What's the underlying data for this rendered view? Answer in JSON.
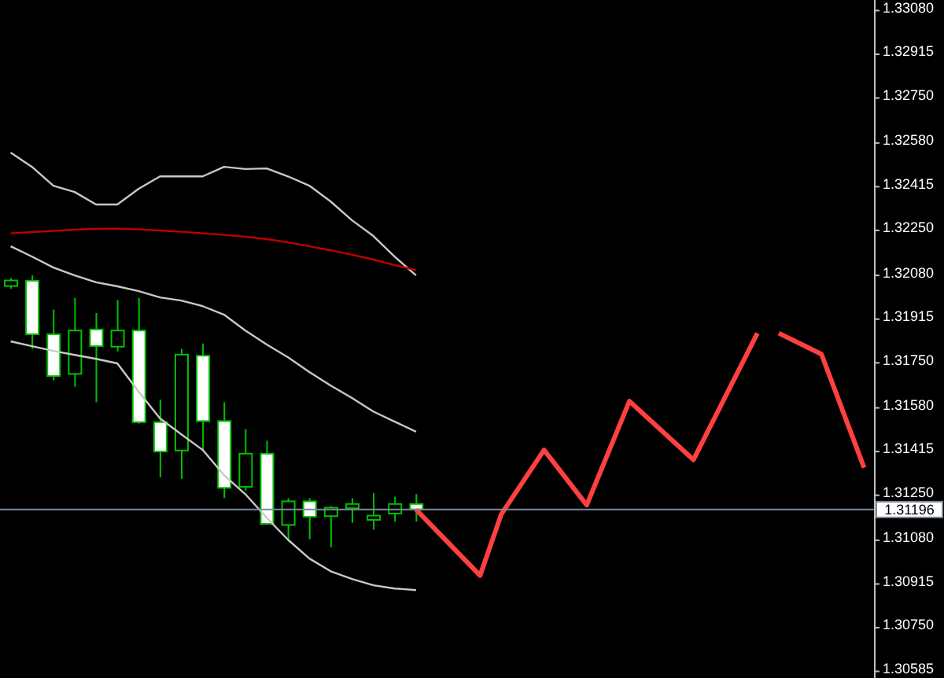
{
  "chart_data": {
    "type": "candlestick",
    "categories": [
      null,
      null,
      null,
      null,
      null,
      null,
      null,
      null,
      null,
      null,
      null,
      null,
      null,
      null,
      null,
      null,
      null,
      null,
      null,
      null,
      null,
      null,
      null,
      null,
      null,
      null,
      null,
      null,
      null,
      null,
      null,
      null,
      null,
      null,
      null,
      null,
      null,
      null,
      null,
      null,
      null
    ],
    "ohlc": [
      [
        1.3204,
        1.3207,
        1.3203,
        1.32061
      ],
      [
        1.3206,
        1.3208,
        1.31803,
        1.31858
      ],
      [
        1.31858,
        1.31951,
        1.31684,
        1.317
      ],
      [
        1.31708,
        1.31995,
        1.3166,
        1.31872
      ],
      [
        1.31876,
        1.31938,
        1.31601,
        1.31813
      ],
      [
        1.31811,
        1.31987,
        1.31793,
        1.31872
      ],
      [
        1.31872,
        1.31995,
        1.3152,
        1.31526
      ],
      [
        1.31526,
        1.31611,
        1.31318,
        1.31415
      ],
      [
        1.31419,
        1.31803,
        1.31312,
        1.31781
      ],
      [
        1.31777,
        1.31823,
        1.31417,
        1.3153
      ],
      [
        1.3153,
        1.31601,
        1.31239,
        1.31278
      ],
      [
        1.31282,
        1.315,
        1.31268,
        1.31407
      ],
      [
        1.31407,
        1.31456,
        1.31142,
        1.31142
      ],
      [
        1.31138,
        1.31239,
        1.31084,
        1.31227
      ],
      [
        1.31227,
        1.31239,
        1.31084,
        1.31169
      ],
      [
        1.31171,
        1.31209,
        1.31054,
        1.31203
      ],
      [
        1.31201,
        1.31239,
        1.31146,
        1.31217
      ],
      [
        1.31157,
        1.31258,
        1.3112,
        1.31173
      ],
      [
        1.31181,
        1.31245,
        1.3115,
        1.31217
      ],
      [
        1.31217,
        1.31254,
        1.3115,
        1.31196
      ],
      null,
      null,
      null,
      null,
      null,
      null,
      null,
      null,
      null,
      null,
      null,
      null,
      null,
      null,
      null,
      null,
      null,
      null,
      null,
      null,
      null
    ],
    "colors": [
      "#000000",
      "#ffffff",
      "#ffffff",
      "#000000",
      "#ffffff",
      "#000000",
      "#ffffff",
      "#ffffff",
      "#000000",
      "#ffffff",
      "#ffffff",
      "#000000",
      "#ffffff",
      "#000000",
      "#ffffff",
      "#000000",
      "#000000",
      "#000000",
      "#000000",
      "#ffffff",
      null,
      null,
      null,
      null,
      null,
      null,
      null,
      null,
      null,
      null,
      null,
      null,
      null,
      null,
      null,
      null,
      null,
      null,
      null,
      null,
      null
    ],
    "series": [
      {
        "type": "line",
        "color": "#c8c8c8",
        "values": [
          1.32544,
          1.3249,
          1.32419,
          1.32395,
          1.32348,
          1.32348,
          1.32407,
          1.32454,
          1.32454,
          1.32454,
          1.3249,
          1.32482,
          1.32484,
          1.32454,
          1.32419,
          1.32359,
          1.32288,
          1.32229,
          1.32151,
          1.3208,
          null,
          null,
          null,
          null,
          null,
          null,
          null,
          null,
          null,
          null,
          null,
          null,
          null,
          null,
          null,
          null,
          null,
          null,
          null,
          null,
          null
        ]
      },
      {
        "type": "line",
        "color": "#c00000",
        "values": [
          1.32239,
          1.32244,
          1.32248,
          1.32253,
          1.32256,
          1.32257,
          1.32254,
          1.3225,
          1.32245,
          1.32239,
          1.32233,
          1.32226,
          1.32217,
          1.32205,
          1.3219,
          1.32175,
          1.32158,
          1.3214,
          1.32119,
          1.321,
          null,
          null,
          null,
          null,
          null,
          null,
          null,
          null,
          null,
          null,
          null,
          null,
          null,
          null,
          null,
          null,
          null,
          null,
          null,
          null,
          null
        ]
      },
      {
        "type": "line",
        "color": "#c8c8c8",
        "values": [
          1.3219,
          1.32151,
          1.3211,
          1.3208,
          1.32054,
          1.32039,
          1.32021,
          1.31997,
          1.31985,
          1.31964,
          1.31932,
          1.31872,
          1.31819,
          1.31771,
          1.31715,
          1.31664,
          1.31617,
          1.31566,
          1.31528,
          1.3149,
          null,
          null,
          null,
          null,
          null,
          null,
          null,
          null,
          null,
          null,
          null,
          null,
          null,
          null,
          null,
          null,
          null,
          null,
          null,
          null,
          null
        ]
      },
      {
        "type": "line",
        "color": "#c8c8c8",
        "values": [
          1.31831,
          1.31813,
          1.31795,
          1.3178,
          1.31765,
          1.31748,
          1.31641,
          1.3154,
          1.3148,
          1.31421,
          1.31326,
          1.31254,
          1.31165,
          1.31082,
          1.31011,
          1.30963,
          1.30934,
          1.3091,
          1.30898,
          1.30892,
          null,
          null,
          null,
          null,
          null,
          null,
          null,
          null,
          null,
          null,
          null,
          null,
          null,
          null,
          null,
          null,
          null,
          null,
          null,
          null,
          null
        ]
      },
      {
        "type": "line",
        "color": "#ff4040",
        "values": [
          null,
          null,
          null,
          null,
          null,
          null,
          null,
          null,
          null,
          null,
          null,
          null,
          null,
          null,
          null,
          null,
          null,
          null,
          null,
          1.31196,
          null,
          null,
          1.30947,
          1.31179,
          null,
          1.31421,
          null,
          1.31213,
          null,
          1.31605,
          null,
          null,
          1.31384,
          null,
          null,
          1.31862,
          null,
          null,
          null,
          null,
          null
        ]
      },
      {
        "type": "line",
        "color": "#ff4040",
        "values": [
          null,
          null,
          null,
          null,
          null,
          null,
          null,
          null,
          null,
          null,
          null,
          null,
          null,
          null,
          null,
          null,
          null,
          null,
          null,
          null,
          null,
          null,
          null,
          null,
          null,
          null,
          null,
          null,
          null,
          null,
          null,
          null,
          null,
          null,
          null,
          null,
          1.31862,
          null,
          1.31783,
          null,
          1.31354
        ]
      }
    ],
    "ylim": [
      1.3056,
      1.3312
    ],
    "yticks": [
      {
        "value": 1.3308,
        "label": "1.33080"
      },
      {
        "value": 1.32915,
        "label": "1.32915"
      },
      {
        "value": 1.3275,
        "label": "1.32750"
      },
      {
        "value": 1.3258,
        "label": "1.32580"
      },
      {
        "value": 1.32415,
        "label": "1.32415"
      },
      {
        "value": 1.3225,
        "label": "1.32250"
      },
      {
        "value": 1.3208,
        "label": "1.32080"
      },
      {
        "value": 1.31915,
        "label": "1.31915"
      },
      {
        "value": 1.3175,
        "label": "1.31750"
      },
      {
        "value": 1.3158,
        "label": "1.31580"
      },
      {
        "value": 1.31415,
        "label": "1.31415"
      },
      {
        "value": 1.3125,
        "label": "1.31250"
      },
      {
        "value": 1.3108,
        "label": "1.31080"
      },
      {
        "value": 1.30915,
        "label": "1.30915"
      },
      {
        "value": 1.3075,
        "label": "1.30750"
      },
      {
        "value": 1.30585,
        "label": "1.30585"
      }
    ],
    "ref_lines": [
      {
        "axis": "y",
        "value": 1.31196,
        "label": "1.31196",
        "color": "#7a8a9a"
      }
    ],
    "tick_labels": "y",
    "marker": "none",
    "line_style": "solid",
    "grid": false
  }
}
